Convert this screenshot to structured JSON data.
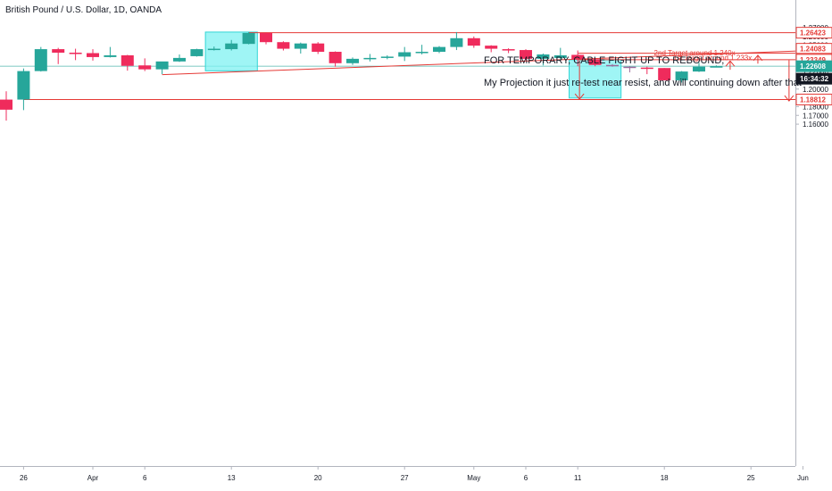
{
  "header": {
    "title": "British Pound / U.S. Dollar, 1D, OANDA"
  },
  "notes": {
    "line1": "FOR TEMPORARY, CABLE FIGHT UP TO REBOUND,",
    "line2": "My Projection it just re-test near resist, and will continuing down after that"
  },
  "colors": {
    "up": "#26a69a",
    "down": "#ef2b5c",
    "box": "#7ff2f2",
    "box_border": "#32d6d6",
    "line": "#e53935",
    "current_price": "#26a69a",
    "purple": "#9c6b9c",
    "countdown_bg": "#131722"
  },
  "chart_data": {
    "type": "candlestick",
    "ylim": [
      1.1535,
      1.2775
    ],
    "y_ticks": [
      {
        "value": 1.27,
        "label": "1.27000"
      },
      {
        "value": 1.26,
        "label": "1.26000"
      },
      {
        "value": 1.25,
        "label": "1.25000"
      },
      {
        "value": 1.23,
        "label": "1.23000"
      },
      {
        "value": 1.22,
        "label": "1.22000"
      },
      {
        "value": 1.21,
        "label": "1.21000"
      },
      {
        "value": 1.2,
        "label": "1.20000"
      },
      {
        "value": 1.19,
        "label": "1.19000"
      },
      {
        "value": 1.18,
        "label": "1.18000"
      },
      {
        "value": 1.17,
        "label": "1.17000"
      },
      {
        "value": 1.16,
        "label": "1.16000"
      }
    ],
    "x_ticks": [
      {
        "index": 1,
        "label": "26"
      },
      {
        "index": 5,
        "label": "Apr"
      },
      {
        "index": 8,
        "label": "6"
      },
      {
        "index": 13,
        "label": "13"
      },
      {
        "index": 18,
        "label": "20"
      },
      {
        "index": 23,
        "label": "27"
      },
      {
        "index": 27,
        "label": "May"
      },
      {
        "index": 30,
        "label": "6"
      },
      {
        "index": 33,
        "label": "11"
      },
      {
        "index": 38,
        "label": "18"
      },
      {
        "index": 43,
        "label": "25"
      },
      {
        "index": 46,
        "label": "Jun"
      }
    ],
    "candles": [
      {
        "o": 1.188,
        "h": 1.1975,
        "l": 1.164,
        "c": 1.1765
      },
      {
        "o": 1.188,
        "h": 1.2235,
        "l": 1.176,
        "c": 1.2205
      },
      {
        "o": 1.2205,
        "h": 1.248,
        "l": 1.22,
        "c": 1.2455
      },
      {
        "o": 1.2455,
        "h": 1.247,
        "l": 1.2285,
        "c": 1.2415
      },
      {
        "o": 1.2415,
        "h": 1.246,
        "l": 1.233,
        "c": 1.241
      },
      {
        "o": 1.241,
        "h": 1.2455,
        "l": 1.2325,
        "c": 1.2365
      },
      {
        "o": 1.2365,
        "h": 1.248,
        "l": 1.236,
        "c": 1.2385
      },
      {
        "o": 1.2385,
        "h": 1.239,
        "l": 1.221,
        "c": 1.2265
      },
      {
        "o": 1.227,
        "h": 1.235,
        "l": 1.2205,
        "c": 1.2225
      },
      {
        "o": 1.2225,
        "h": 1.231,
        "l": 1.217,
        "c": 1.2315
      },
      {
        "o": 1.2315,
        "h": 1.2395,
        "l": 1.231,
        "c": 1.2355
      },
      {
        "o": 1.2375,
        "h": 1.246,
        "l": 1.237,
        "c": 1.2455
      },
      {
        "o": 1.2455,
        "h": 1.2485,
        "l": 1.244,
        "c": 1.246
      },
      {
        "o": 1.2455,
        "h": 1.256,
        "l": 1.244,
        "c": 1.252
      },
      {
        "o": 1.2515,
        "h": 1.265,
        "l": 1.251,
        "c": 1.264
      },
      {
        "o": 1.264,
        "h": 1.2645,
        "l": 1.251,
        "c": 1.2535
      },
      {
        "o": 1.2535,
        "h": 1.2545,
        "l": 1.244,
        "c": 1.246
      },
      {
        "o": 1.246,
        "h": 1.253,
        "l": 1.2405,
        "c": 1.252
      },
      {
        "o": 1.252,
        "h": 1.2535,
        "l": 1.24,
        "c": 1.2425
      },
      {
        "o": 1.2425,
        "h": 1.243,
        "l": 1.2255,
        "c": 1.2295
      },
      {
        "o": 1.2295,
        "h": 1.236,
        "l": 1.2275,
        "c": 1.2345
      },
      {
        "o": 1.2345,
        "h": 1.24,
        "l": 1.2315,
        "c": 1.2355
      },
      {
        "o": 1.2355,
        "h": 1.2385,
        "l": 1.234,
        "c": 1.237
      },
      {
        "o": 1.237,
        "h": 1.248,
        "l": 1.232,
        "c": 1.242
      },
      {
        "o": 1.242,
        "h": 1.2505,
        "l": 1.2395,
        "c": 1.2425
      },
      {
        "o": 1.2425,
        "h": 1.249,
        "l": 1.241,
        "c": 1.248
      },
      {
        "o": 1.248,
        "h": 1.265,
        "l": 1.2445,
        "c": 1.258
      },
      {
        "o": 1.258,
        "h": 1.26,
        "l": 1.247,
        "c": 1.2495
      },
      {
        "o": 1.2495,
        "h": 1.25,
        "l": 1.242,
        "c": 1.246
      },
      {
        "o": 1.2455,
        "h": 1.2465,
        "l": 1.241,
        "c": 1.2445
      },
      {
        "o": 1.2445,
        "h": 1.2455,
        "l": 1.233,
        "c": 1.2345
      },
      {
        "o": 1.2345,
        "h": 1.2405,
        "l": 1.227,
        "c": 1.2395
      },
      {
        "o": 1.2355,
        "h": 1.247,
        "l": 1.234,
        "c": 1.2385
      },
      {
        "o": 1.239,
        "h": 1.244,
        "l": 1.226,
        "c": 1.234
      },
      {
        "o": 1.234,
        "h": 1.2355,
        "l": 1.226,
        "c": 1.2275
      },
      {
        "o": 1.2275,
        "h": 1.2285,
        "l": 1.2255,
        "c": 1.2265
      },
      {
        "o": 1.2255,
        "h": 1.226,
        "l": 1.219,
        "c": 1.2245
      },
      {
        "o": 1.2245,
        "h": 1.2255,
        "l": 1.217,
        "c": 1.224
      },
      {
        "o": 1.224,
        "h": 1.224,
        "l": 1.21,
        "c": 1.21
      },
      {
        "o": 1.21,
        "h": 1.2205,
        "l": 1.2075,
        "c": 1.22
      },
      {
        "o": 1.22,
        "h": 1.23,
        "l": 1.2195,
        "c": 1.2255
      },
      {
        "o": 1.2255,
        "h": 1.227,
        "l": 1.225,
        "c": 1.226
      }
    ],
    "highlight_candles": [
      35,
      36
    ],
    "horizontal_lines": [
      {
        "price": 1.26423,
        "from_index": 14,
        "label": "1.26423"
      },
      {
        "price": 1.24083,
        "from_index": 33,
        "label": "1.24083"
      },
      {
        "price": 1.23349,
        "from_index": 33,
        "label": "1.23349"
      },
      {
        "price": 1.18812,
        "from_index": 1,
        "label": "1.18812"
      }
    ],
    "trendline": {
      "from": {
        "index": 9,
        "price": 1.2165
      },
      "to": {
        "index": 48.5,
        "price": 1.2455
      }
    },
    "boxes": [
      {
        "from_index": 11.5,
        "to_index": 14.5,
        "top": 1.265,
        "bottom": 1.2208
      },
      {
        "from_index": 32.5,
        "to_index": 35.5,
        "top": 1.2335,
        "bottom": 1.1898
      }
    ],
    "arrows": [
      {
        "index": 33.1,
        "from": 1.2325,
        "to": 1.1885,
        "dir": "down"
      },
      {
        "index": 41.8,
        "from": 1.222,
        "to": 1.232,
        "dir": "up"
      },
      {
        "index": 43.4,
        "from": 1.229,
        "to": 1.2385,
        "dir": "up"
      },
      {
        "index": 45.2,
        "from": 1.233,
        "to": 1.1865,
        "dir": "down"
      }
    ],
    "annotations": [
      {
        "text": "2nd Target around 1.240x",
        "index": 37.4,
        "price": 1.2387
      },
      {
        "text": "1st Target around 1.233x",
        "index": 38.5,
        "price": 1.2327
      }
    ],
    "price_tags": [
      {
        "label": "1.26423",
        "price": 1.26423,
        "style": "red"
      },
      {
        "label": "1.24083",
        "price": 1.24083,
        "style": "red"
      },
      {
        "label": "1.24068",
        "price": 1.24068,
        "style": "red"
      },
      {
        "label": "1.23349",
        "price": 1.23349,
        "style": "red"
      },
      {
        "label": "1.22608",
        "price": 1.22608,
        "style": "green"
      },
      {
        "label": "16:34:32",
        "price": 1.22608,
        "style": "dark"
      },
      {
        "label": "1.18812",
        "price": 1.18812,
        "style": "red"
      }
    ],
    "current_price": 1.22608
  }
}
